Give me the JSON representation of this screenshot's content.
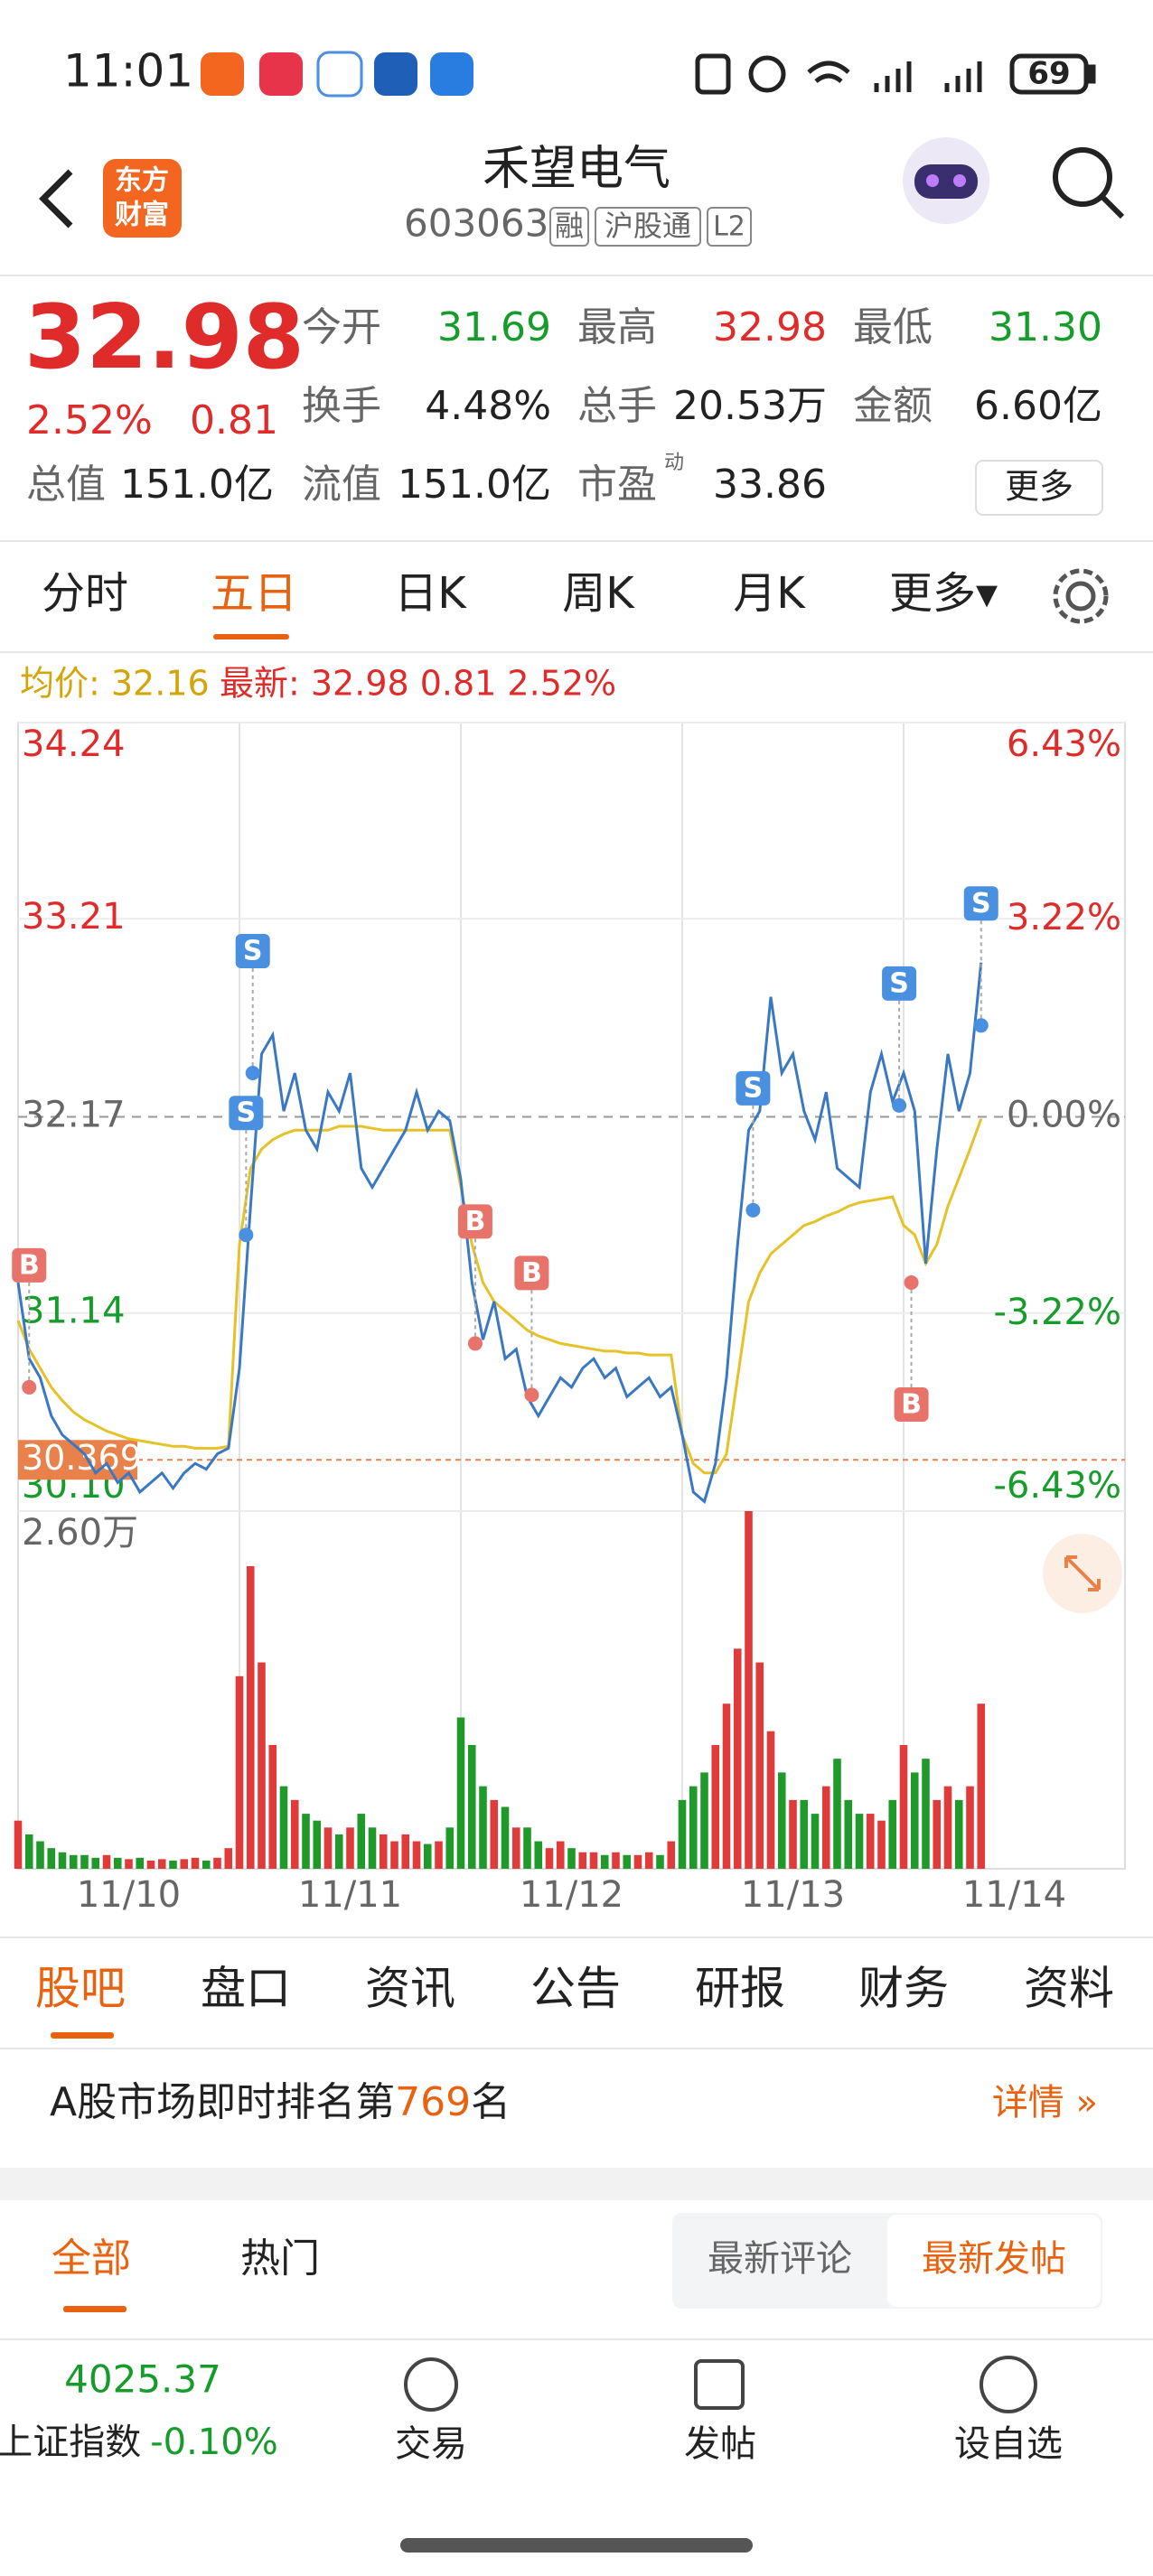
{
  "status_bar": {
    "time": "11:01",
    "battery": "69"
  },
  "header": {
    "logo": [
      "东方",
      "财富"
    ],
    "title": "禾望电气",
    "code": "603063",
    "tags": [
      "融",
      "沪股通",
      "L2"
    ]
  },
  "quote": {
    "price": "32.98",
    "change_pct": "2.52%",
    "change": "0.81",
    "fields": [
      {
        "label": "今开",
        "value": "31.69"
      },
      {
        "label": "最高",
        "value": "32.98"
      },
      {
        "label": "最低",
        "value": "31.30"
      },
      {
        "label": "换手",
        "value": "4.48%"
      },
      {
        "label": "总手",
        "value": "20.53万"
      },
      {
        "label": "金额",
        "value": "6.60亿"
      },
      {
        "label": "总值",
        "value": "151.0亿"
      },
      {
        "label": "流值",
        "value": "151.0亿"
      },
      {
        "label": "市盈",
        "sup": "动",
        "value": "33.86"
      }
    ],
    "more": "更多"
  },
  "tabs": {
    "items": [
      "分时",
      "五日",
      "日K",
      "周K",
      "月K",
      "更多▾"
    ]
  },
  "chart_data": {
    "type": "line",
    "legend": {
      "avg": "均价: 32.16",
      "latest": "最新: 32.98 0.81 2.52%"
    },
    "series": [
      {
        "color": "#3a78c4",
        "values": [
          31.3,
          30.9,
          30.8,
          30.6,
          30.5,
          30.45,
          30.4,
          30.3,
          30.35,
          30.25,
          30.3,
          30.2,
          30.25,
          30.3,
          30.22,
          30.3,
          30.35,
          30.32,
          30.4,
          30.43,
          30.85,
          31.7,
          32.5,
          32.6,
          32.2,
          32.4,
          32.1,
          32.0,
          32.3,
          32.2,
          32.4,
          31.9,
          31.8,
          31.9,
          32.0,
          32.1,
          32.3,
          32.1,
          32.2,
          32.15,
          31.84,
          31.3,
          31.0,
          31.2,
          30.9,
          30.95,
          30.7,
          30.6,
          30.7,
          30.8,
          30.75,
          30.85,
          30.9,
          30.8,
          30.85,
          30.7,
          30.75,
          30.8,
          30.7,
          30.75,
          30.5,
          30.2,
          30.15,
          30.35,
          30.8,
          31.5,
          32.1,
          32.2,
          32.8,
          32.4,
          32.5,
          32.2,
          32.05,
          32.3,
          31.9,
          31.85,
          31.8,
          32.3,
          32.5,
          32.25,
          32.4,
          32.2,
          31.4,
          32.0,
          32.5,
          32.2,
          32.4,
          32.98
        ]
      },
      {
        "color": "#e6c229",
        "values": [
          31.1,
          30.95,
          30.85,
          30.75,
          30.68,
          30.62,
          30.58,
          30.55,
          30.52,
          30.5,
          30.48,
          30.47,
          30.46,
          30.45,
          30.44,
          30.44,
          30.43,
          30.43,
          30.43,
          30.44,
          31.5,
          31.9,
          32.0,
          32.05,
          32.08,
          32.1,
          32.1,
          32.1,
          32.1,
          32.12,
          32.12,
          32.12,
          32.11,
          32.1,
          32.1,
          32.1,
          32.1,
          32.1,
          32.1,
          32.1,
          31.8,
          31.5,
          31.3,
          31.2,
          31.15,
          31.1,
          31.05,
          31.02,
          31.0,
          30.98,
          30.97,
          30.96,
          30.95,
          30.94,
          30.94,
          30.93,
          30.93,
          30.92,
          30.92,
          30.92,
          30.5,
          30.35,
          30.3,
          30.3,
          30.4,
          30.8,
          31.2,
          31.35,
          31.45,
          31.5,
          31.55,
          31.6,
          31.62,
          31.65,
          31.67,
          31.7,
          31.72,
          31.73,
          31.74,
          31.75,
          31.6,
          31.55,
          31.4,
          31.5,
          31.7,
          31.85,
          32.0,
          32.16
        ]
      }
    ],
    "xlim": [
      0,
      100
    ],
    "xticks": [
      {
        "value": 10,
        "label": "11/10"
      },
      {
        "value": 30,
        "label": "11/11"
      },
      {
        "value": 50,
        "label": "11/12"
      },
      {
        "value": 70,
        "label": "11/13"
      },
      {
        "value": 90,
        "label": "11/14"
      }
    ],
    "ylim": [
      30.1,
      34.24
    ],
    "yticks": [
      {
        "value": 30.1,
        "label": "30.10"
      },
      31.14,
      32.17,
      33.21,
      34.24
    ],
    "y2lim": [
      -6.43,
      6.43
    ],
    "y2ticks": [
      {
        "value": -6.43,
        "label": "-6.43%"
      },
      {
        "value": -3.22,
        "label": "-3.22%"
      },
      {
        "value": 0,
        "label": "0.00%"
      },
      {
        "value": 3.22,
        "label": "3.22%"
      },
      {
        "value": 6.43,
        "label": "6.43%"
      }
    ],
    "ref_line": 30.369,
    "ref_color": "#e8824a",
    "markers": [
      {
        "label": "B",
        "x": 1,
        "y": 30.75,
        "side": "above"
      },
      {
        "label": "S",
        "x": 20.6,
        "y": 31.55,
        "side": "above"
      },
      {
        "label": "S",
        "x": 21.2,
        "y": 32.4,
        "side": "above"
      },
      {
        "label": "B",
        "x": 41.3,
        "y": 30.98,
        "side": "above"
      },
      {
        "label": "B",
        "x": 46.4,
        "y": 30.71,
        "side": "above"
      },
      {
        "label": "S",
        "x": 66.4,
        "y": 31.68,
        "side": "above"
      },
      {
        "label": "S",
        "x": 79.6,
        "y": 32.23,
        "side": "above"
      },
      {
        "label": "B",
        "x": 80.7,
        "y": 31.3,
        "side": "below"
      },
      {
        "label": "S",
        "x": 87,
        "y": 32.65,
        "side": "above"
      }
    ],
    "volume": {
      "values": [
        0.35,
        0.25,
        0.2,
        0.15,
        0.12,
        0.1,
        0.1,
        0.08,
        0.1,
        0.08,
        0.07,
        0.08,
        0.06,
        0.07,
        0.06,
        0.07,
        0.08,
        0.06,
        0.08,
        0.15,
        1.4,
        2.2,
        1.5,
        0.9,
        0.6,
        0.5,
        0.4,
        0.35,
        0.3,
        0.25,
        0.3,
        0.4,
        0.3,
        0.25,
        0.2,
        0.25,
        0.2,
        0.18,
        0.2,
        0.3,
        1.1,
        0.9,
        0.6,
        0.5,
        0.45,
        0.3,
        0.3,
        0.2,
        0.15,
        0.2,
        0.15,
        0.12,
        0.12,
        0.1,
        0.12,
        0.1,
        0.1,
        0.12,
        0.1,
        0.2,
        0.5,
        0.6,
        0.7,
        0.9,
        1.2,
        1.6,
        2.6,
        1.5,
        1.0,
        0.7,
        0.5,
        0.5,
        0.4,
        0.6,
        0.8,
        0.5,
        0.4,
        0.4,
        0.35,
        0.5,
        0.9,
        0.7,
        0.8,
        0.5,
        0.6,
        0.5,
        0.6,
        1.2
      ],
      "ylim": [
        0,
        2.6
      ],
      "yticks": [
        {
          "value": 2.6,
          "label": "2.60万"
        }
      ],
      "up_color": "#e03a3a",
      "down_color": "#1f9a2a"
    }
  },
  "section_tabs": {
    "items": [
      "股吧",
      "盘口",
      "资讯",
      "公告",
      "研报",
      "财务",
      "资料"
    ]
  },
  "ranking": {
    "prefix": "A股市场即时排名第",
    "rank": "769",
    "suffix": "名",
    "link": "详情 »"
  },
  "filter": {
    "tabs": [
      "全部",
      "热门"
    ],
    "sort": [
      "最新评论",
      "最新发帖"
    ]
  },
  "bottom_bar": {
    "index_value": "4025.37",
    "index_name": "上证指数",
    "index_change": "-0.10%",
    "actions": [
      "交易",
      "发帖",
      "设自选"
    ]
  }
}
